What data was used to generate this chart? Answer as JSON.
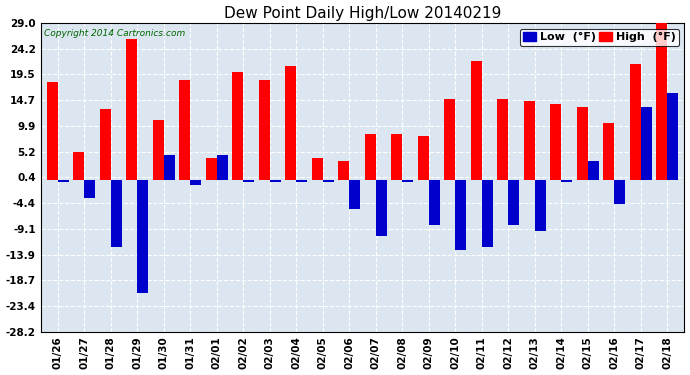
{
  "title": "Dew Point Daily High/Low 20140219",
  "copyright": "Copyright 2014 Cartronics.com",
  "dates": [
    "01/26",
    "01/27",
    "01/28",
    "01/29",
    "01/30",
    "01/31",
    "02/01",
    "02/02",
    "02/03",
    "02/04",
    "02/05",
    "02/06",
    "02/07",
    "02/08",
    "02/09",
    "02/10",
    "02/11",
    "02/12",
    "02/13",
    "02/14",
    "02/15",
    "02/16",
    "02/17",
    "02/18"
  ],
  "high_values": [
    18.0,
    5.2,
    13.0,
    26.0,
    11.0,
    18.5,
    4.0,
    20.0,
    18.5,
    21.0,
    4.0,
    3.5,
    8.5,
    8.5,
    8.0,
    15.0,
    22.0,
    15.0,
    14.5,
    14.0,
    13.5,
    10.5,
    21.5,
    29.0
  ],
  "low_values": [
    -0.5,
    -3.5,
    -12.5,
    -21.0,
    4.5,
    -1.0,
    4.5,
    -0.5,
    -0.5,
    -0.5,
    -0.5,
    -5.5,
    -10.5,
    -0.5,
    -8.5,
    -13.0,
    -12.5,
    -8.5,
    -9.5,
    -0.5,
    3.5,
    -4.5,
    13.5,
    16.0
  ],
  "high_color": "#ff0000",
  "low_color": "#0000cc",
  "plot_bg_color": "#dce6f1",
  "fig_bg_color": "#ffffff",
  "grid_color": "#ffffff",
  "grid_ls": "--",
  "ylim": [
    -28.2,
    29.0
  ],
  "yticks": [
    29.0,
    24.2,
    19.5,
    14.7,
    9.9,
    5.2,
    0.4,
    -4.4,
    -9.1,
    -13.9,
    -18.7,
    -23.4,
    -28.2
  ],
  "bar_width": 0.42,
  "title_fontsize": 11,
  "tick_fontsize": 7.5,
  "legend_fontsize": 8
}
